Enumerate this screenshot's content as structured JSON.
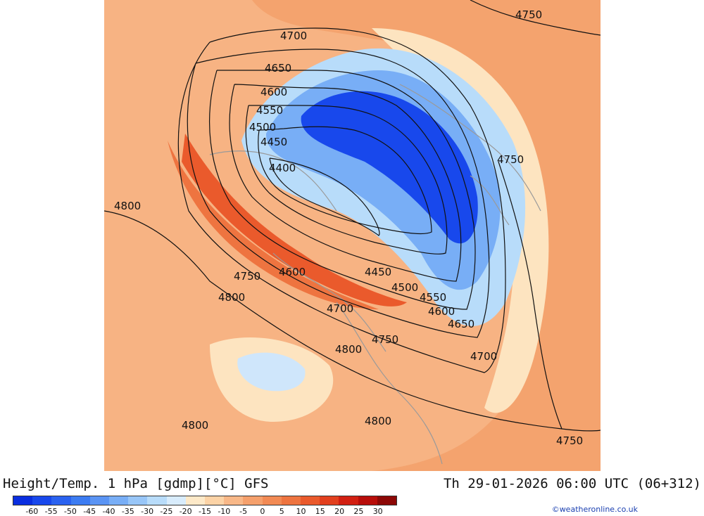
{
  "title": "Height/Temp. 1 hPa [gdmp][°C] GFS",
  "valid_time": "Th 29-01-2026 06:00 UTC (06+312)",
  "credit": "©weatheronline.co.uk",
  "colorbar": {
    "labels": [
      "-60",
      "-55",
      "-50",
      "-45",
      "-40",
      "-35",
      "-30",
      "-25",
      "-20",
      "-15",
      "-10",
      "-5",
      "0",
      "5",
      "10",
      "15",
      "20",
      "25",
      "30"
    ],
    "colors": [
      "#0a2ee0",
      "#1848ec",
      "#2a62f0",
      "#3c7cf2",
      "#5a94f4",
      "#78aef6",
      "#98c6f8",
      "#b8dcfa",
      "#d8ecfc",
      "#fde9c8",
      "#fcd3a6",
      "#f8b888",
      "#f5a06c",
      "#f28a54",
      "#ee7440",
      "#ea5a2c",
      "#e2401e",
      "#d22012",
      "#b80e0a",
      "#8c0806"
    ]
  },
  "contour_labels": [
    {
      "text": "4700"
    },
    {
      "text": "4650"
    },
    {
      "text": "4600"
    },
    {
      "text": "4550"
    },
    {
      "text": "4500"
    },
    {
      "text": "4450"
    },
    {
      "text": "4400"
    },
    {
      "text": "4800"
    },
    {
      "text": "4750"
    },
    {
      "text": "4600"
    },
    {
      "text": "4450"
    },
    {
      "text": "4500"
    },
    {
      "text": "4800"
    },
    {
      "text": "4700"
    },
    {
      "text": "4550"
    },
    {
      "text": "4600"
    },
    {
      "text": "4650"
    },
    {
      "text": "4800"
    },
    {
      "text": "4750"
    },
    {
      "text": "4700"
    },
    {
      "text": "4800"
    },
    {
      "text": "4800"
    },
    {
      "text": "4750"
    },
    {
      "text": "4750"
    },
    {
      "text": "4750"
    }
  ]
}
